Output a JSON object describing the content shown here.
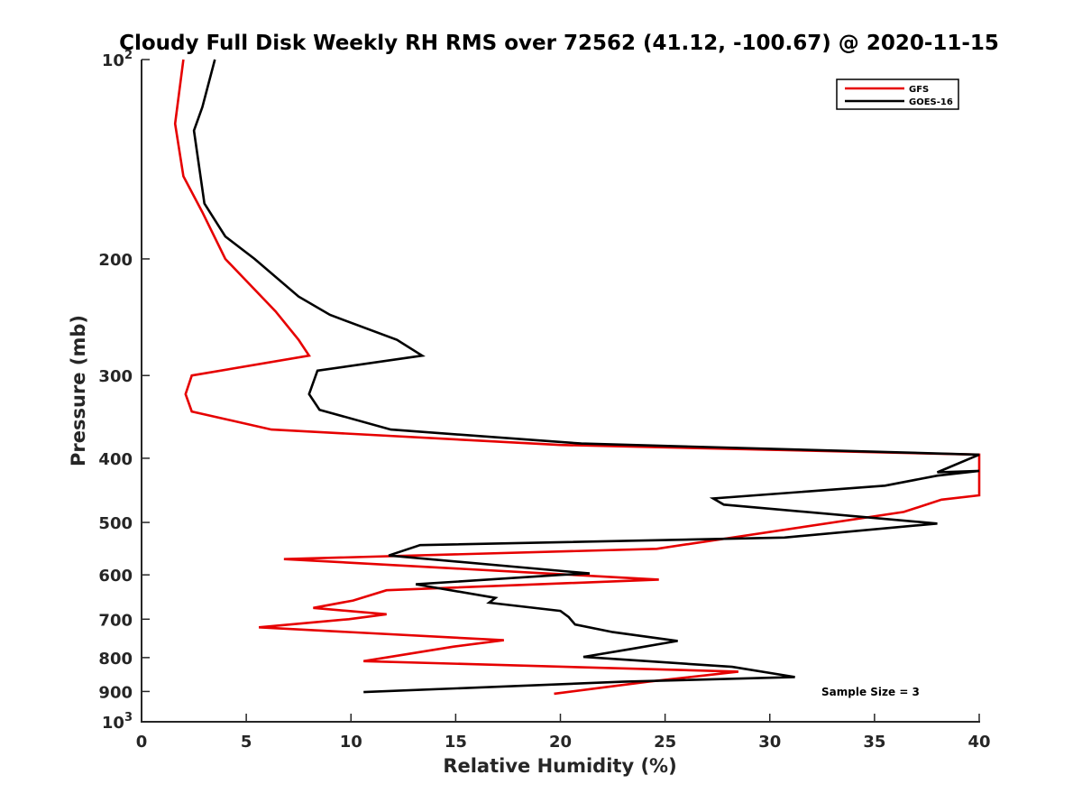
{
  "chart_data": {
    "type": "line",
    "title": "Cloudy Full Disk Weekly RH RMS over 72562 (41.12, -100.67) @ 2020-11-15",
    "xlabel": "Relative Humidity (%)",
    "ylabel": "Pressure (mb)",
    "xlim": [
      0,
      40
    ],
    "ylim": [
      100,
      1000
    ],
    "yscale": "log",
    "y_reversed": true,
    "grid": false,
    "legend_position": "top-right",
    "x_ticks": [
      "0",
      "5",
      "10",
      "15",
      "20",
      "25",
      "30",
      "35",
      "40"
    ],
    "y_ticks": [
      {
        "value": 100,
        "label": "10",
        "sup": "2"
      },
      {
        "value": 200,
        "label": "200",
        "sup": ""
      },
      {
        "value": 300,
        "label": "300",
        "sup": ""
      },
      {
        "value": 400,
        "label": "400",
        "sup": ""
      },
      {
        "value": 500,
        "label": "500",
        "sup": ""
      },
      {
        "value": 600,
        "label": "600",
        "sup": ""
      },
      {
        "value": 700,
        "label": "700",
        "sup": ""
      },
      {
        "value": 800,
        "label": "800",
        "sup": ""
      },
      {
        "value": 900,
        "label": "900",
        "sup": ""
      },
      {
        "value": 1000,
        "label": "10",
        "sup": "3"
      }
    ],
    "series": [
      {
        "name": "GFS",
        "color": "#e60000",
        "x": [
          2.0,
          1.6,
          2.0,
          2.9,
          4.0,
          6.4,
          7.5,
          8.0,
          2.4,
          2.1,
          2.4,
          6.2,
          20.0,
          40.0,
          40.0,
          38.2,
          36.4,
          24.6,
          6.8,
          24.7,
          11.7,
          10.1,
          8.2,
          11.7,
          9.9,
          5.6,
          17.3,
          14.9,
          10.6,
          28.5,
          24.2,
          19.7
        ],
        "y": [
          100,
          125,
          150,
          170,
          200,
          240,
          265,
          280,
          300,
          320,
          340,
          362,
          382,
          395,
          455,
          462,
          482,
          548,
          568,
          610,
          633,
          656,
          673,
          688,
          700,
          720,
          753,
          770,
          810,
          840,
          870,
          907
        ]
      },
      {
        "name": "GOES-16",
        "color": "#000000",
        "x": [
          3.5,
          2.9,
          2.5,
          3.0,
          4.0,
          5.4,
          7.5,
          9.0,
          12.2,
          13.4,
          8.4,
          8.0,
          8.5,
          11.9,
          21.0,
          40.0,
          38.0,
          40.0,
          38.0,
          35.5,
          27.3,
          27.8,
          38.0,
          30.7,
          13.3,
          11.8,
          21.4,
          20.0,
          13.1,
          16.9,
          16.6,
          20.0,
          20.4,
          20.7,
          22.5,
          25.6,
          23.4,
          21.1,
          28.2,
          31.2,
          23.0,
          10.6
        ],
        "y": [
          100,
          118,
          128,
          165,
          185,
          200,
          228,
          243,
          265,
          280,
          295,
          320,
          338,
          362,
          380,
          395,
          420,
          418,
          425,
          440,
          460,
          470,
          502,
          527,
          541,
          561,
          597,
          600,
          620,
          650,
          661,
          680,
          695,
          713,
          732,
          755,
          776,
          798,
          826,
          856,
          870,
          902
        ]
      }
    ],
    "annotations": [
      "Sample Size = 3"
    ]
  }
}
